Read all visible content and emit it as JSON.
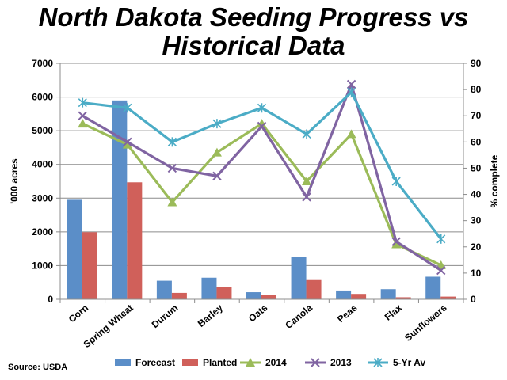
{
  "chart_data": {
    "type": "bar",
    "title_line1": "North Dakota Seeding Progress vs",
    "title_line2": "Historical Data",
    "ylabel_left": "'000 acres",
    "ylabel_right": "% complete",
    "ylim_left": [
      0,
      7000
    ],
    "ylim_right": [
      0,
      90
    ],
    "left_ticks": [
      "0",
      "1000",
      "2000",
      "3000",
      "4000",
      "5000",
      "6000",
      "7000"
    ],
    "right_ticks": [
      "0",
      "10",
      "20",
      "30",
      "40",
      "50",
      "60",
      "70",
      "80",
      "90"
    ],
    "categories": [
      "Corn",
      "Spring Wheat",
      "Durum",
      "Barley",
      "Oats",
      "Canola",
      "Peas",
      "Flax",
      "Sunflowers"
    ],
    "bar_series": [
      {
        "name": "Forecast",
        "color": "#5b8ec8",
        "values": [
          2950,
          5900,
          550,
          640,
          210,
          1260,
          260,
          300,
          670
        ]
      },
      {
        "name": "Planted",
        "color": "#d0605a",
        "values": [
          1990,
          3470,
          190,
          360,
          130,
          570,
          160,
          60,
          80
        ]
      }
    ],
    "line_series": [
      {
        "name": "2014",
        "color": "#9bbb59",
        "marker": "triangle",
        "values": [
          67,
          59,
          37,
          56,
          67,
          45,
          63,
          21,
          13
        ]
      },
      {
        "name": "2013",
        "color": "#8064a2",
        "marker": "x",
        "values": [
          70,
          60,
          50,
          47,
          66,
          39,
          82,
          22,
          11
        ]
      },
      {
        "name": "5-Yr Av",
        "color": "#4bacc6",
        "marker": "star",
        "values": [
          75,
          73,
          60,
          67,
          73,
          63,
          79,
          45,
          23
        ]
      }
    ],
    "grid": "horizontal",
    "legend_position": "bottom",
    "source": "Source: USDA"
  }
}
